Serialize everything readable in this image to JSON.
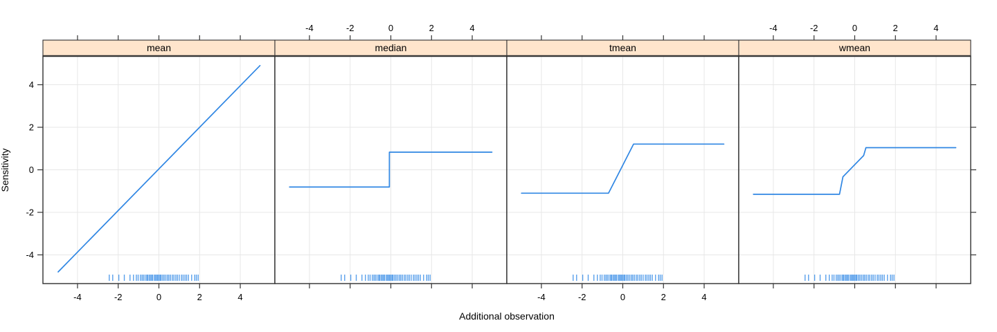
{
  "figure": {
    "xlabel": "Additional observation",
    "ylabel": "Sensitivity"
  },
  "colors": {
    "line": "#2f86e3",
    "rug": "#3b8fe8",
    "strip_bg": "#ffe5cc",
    "strip_border": "#4a4a4a",
    "panel_border": "#2f2f2f",
    "grid": "#e7e7e7",
    "tick": "#333333",
    "text": "#000000",
    "background": "#ffffff"
  },
  "chart_data": {
    "type": "line",
    "title": "",
    "xlabel": "Additional observation",
    "ylabel": "Sensitivity",
    "xlim": [
      -5.7,
      5.7
    ],
    "ylim": [
      -5.35,
      5.35
    ],
    "xticks": [
      -4,
      -2,
      0,
      2,
      4
    ],
    "yticks": [
      -4,
      -2,
      0,
      2,
      4
    ],
    "grid": true,
    "legend": "none",
    "layout_hint": "lattice/trellis: 4 panels in one row with shared y axis; x tick labels alternate bottom (panels 1,3) and top (panels 2,4); unlabeled ticks on all panel edges; rug of sample points at panel bottoms",
    "panels": [
      {
        "label": "mean",
        "points": [
          [
            -4.95,
            -4.8
          ],
          [
            4.97,
            4.9
          ]
        ]
      },
      {
        "label": "median",
        "points": [
          [
            -4.98,
            -0.81
          ],
          [
            -0.07,
            -0.81
          ],
          [
            -0.07,
            0.83
          ],
          [
            4.97,
            0.83
          ]
        ]
      },
      {
        "label": "tmean",
        "points": [
          [
            -4.98,
            -1.1
          ],
          [
            -0.7,
            -1.1
          ],
          [
            0.53,
            1.21
          ],
          [
            4.97,
            1.21
          ]
        ]
      },
      {
        "label": "wmean",
        "points": [
          [
            -4.98,
            -1.15
          ],
          [
            -0.75,
            -1.15
          ],
          [
            -0.58,
            -0.33
          ],
          [
            0.44,
            0.67
          ],
          [
            0.55,
            1.04
          ],
          [
            4.97,
            1.04
          ]
        ]
      }
    ],
    "rug_x": [
      -2.44,
      -2.27,
      -1.97,
      -1.7,
      -1.42,
      -1.25,
      -1.11,
      -1.02,
      -0.91,
      -0.83,
      -0.76,
      -0.68,
      -0.6,
      -0.55,
      -0.48,
      -0.42,
      -0.36,
      -0.31,
      -0.23,
      -0.17,
      -0.11,
      -0.06,
      0.0,
      0.06,
      0.11,
      0.19,
      0.26,
      0.34,
      0.42,
      0.49,
      0.57,
      0.66,
      0.74,
      0.83,
      0.91,
      1.0,
      1.11,
      1.19,
      1.28,
      1.36,
      1.45,
      1.61,
      1.76,
      1.84,
      1.93
    ]
  }
}
